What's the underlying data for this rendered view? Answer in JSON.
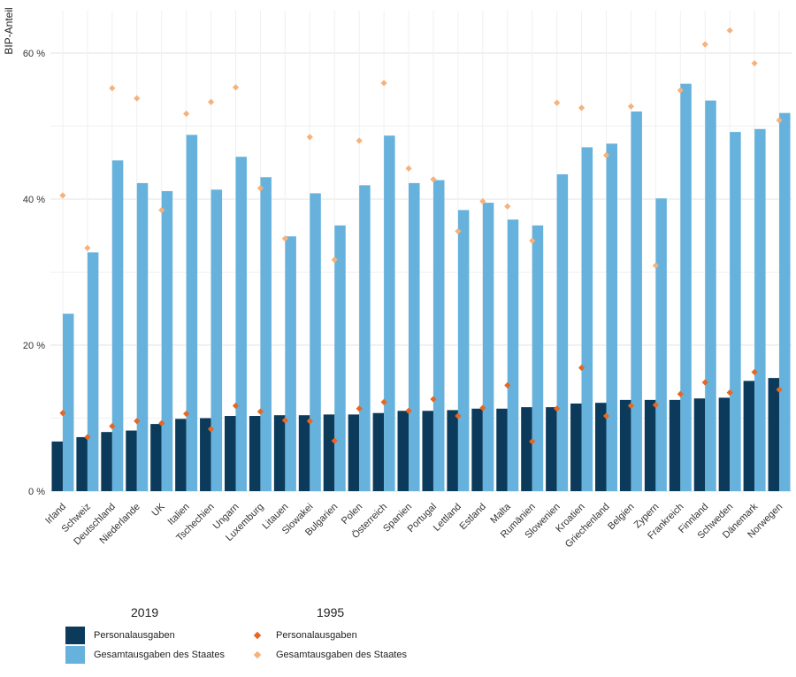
{
  "chart_data": {
    "type": "bar",
    "ylabel": "BIP-Anteil",
    "xlabel": "",
    "ylim": [
      0,
      65
    ],
    "y_ticks": [
      {
        "value": 0,
        "label": "0 %"
      },
      {
        "value": 20,
        "label": "20 %"
      },
      {
        "value": 40,
        "label": "40 %"
      },
      {
        "value": 60,
        "label": "60 %"
      }
    ],
    "categories": [
      "Irland",
      "Schweiz",
      "Deutschland",
      "Niederlande",
      "UK",
      "Italien",
      "Tschechien",
      "Ungarn",
      "Luxemburg",
      "Litauen",
      "Slowakei",
      "Bulgarien",
      "Polen",
      "Österreich",
      "Spanien",
      "Portugal",
      "Lettland",
      "Estland",
      "Malta",
      "Rumänien",
      "Slowenien",
      "Kroatien",
      "Griechenland",
      "Belgien",
      "Zypern",
      "Frankreich",
      "Finnland",
      "Schweden",
      "Dänemark",
      "Norwegen"
    ],
    "series": [
      {
        "name": "Personalausgaben",
        "group": "2019",
        "kind": "bar",
        "color": "#0b3a5a",
        "values": [
          6.8,
          7.4,
          8.1,
          8.3,
          9.2,
          9.9,
          10.0,
          10.3,
          10.3,
          10.4,
          10.4,
          10.5,
          10.5,
          10.7,
          11.0,
          11.0,
          11.1,
          11.3,
          11.3,
          11.5,
          11.5,
          12.0,
          12.1,
          12.5,
          12.5,
          12.5,
          12.7,
          12.8,
          15.1,
          15.5
        ]
      },
      {
        "name": "Gesamtausgaben des Staates",
        "group": "2019",
        "kind": "bar",
        "color": "#66b2dc",
        "values": [
          24.3,
          32.7,
          45.3,
          42.2,
          41.1,
          48.8,
          41.3,
          45.8,
          43.0,
          34.9,
          40.8,
          36.4,
          41.9,
          48.7,
          42.2,
          42.6,
          38.5,
          39.5,
          37.2,
          36.4,
          43.4,
          47.1,
          47.6,
          52.0,
          40.1,
          55.8,
          53.5,
          49.2,
          49.6,
          51.8
        ]
      },
      {
        "name": "Personalausgaben",
        "group": "1995",
        "kind": "point",
        "color": "#e8661f",
        "values": [
          10.7,
          7.4,
          8.9,
          9.6,
          9.3,
          10.6,
          8.5,
          11.7,
          10.9,
          9.7,
          9.6,
          6.9,
          11.3,
          12.2,
          11.0,
          12.6,
          10.3,
          11.4,
          14.5,
          6.8,
          11.3,
          16.9,
          10.3,
          11.7,
          11.8,
          13.3,
          14.9,
          13.5,
          16.3,
          13.9
        ]
      },
      {
        "name": "Gesamtausgaben des Staates",
        "group": "1995",
        "kind": "point",
        "color": "#f5b27c",
        "values": [
          40.5,
          33.3,
          55.2,
          53.8,
          38.5,
          51.7,
          53.3,
          55.3,
          41.5,
          34.6,
          48.5,
          31.7,
          48.0,
          55.9,
          44.2,
          42.7,
          35.6,
          39.7,
          39.0,
          34.3,
          53.2,
          52.5,
          46.0,
          52.7,
          30.9,
          54.9,
          61.2,
          63.1,
          58.6,
          50.8
        ]
      }
    ],
    "legend": {
      "placement": "bottom-left",
      "groups": [
        {
          "title": "2019",
          "entries": [
            {
              "label": "Personalausgaben",
              "color": "#0b3a5a",
              "kind": "bar"
            },
            {
              "label": "Gesamtausgaben des Staates",
              "color": "#66b2dc",
              "kind": "bar"
            }
          ]
        },
        {
          "title": "1995",
          "entries": [
            {
              "label": "Personalausgaben",
              "color": "#e8661f",
              "kind": "point"
            },
            {
              "label": "Gesamtausgaben des Staates",
              "color": "#f5b27c",
              "kind": "point"
            }
          ]
        }
      ]
    }
  }
}
